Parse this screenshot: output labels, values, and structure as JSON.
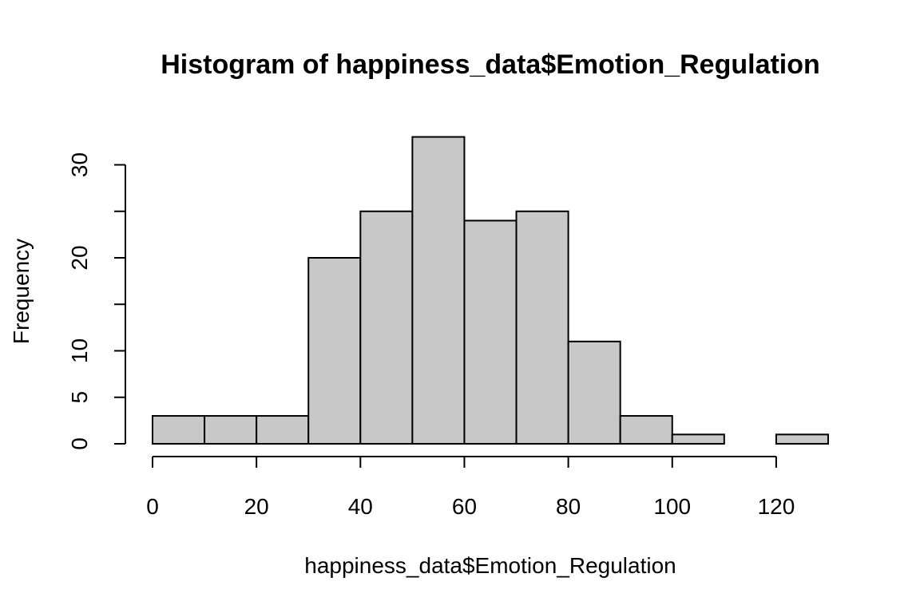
{
  "chart_data": {
    "type": "bar",
    "histogram": true,
    "title": "Histogram of happiness_data$Emotion_Regulation",
    "xlabel": "happiness_data$Emotion_Regulation",
    "ylabel": "Frequency",
    "bin_edges": [
      0,
      10,
      20,
      30,
      40,
      50,
      60,
      70,
      80,
      90,
      100,
      110,
      120,
      130
    ],
    "values": [
      3,
      3,
      3,
      20,
      25,
      33,
      24,
      25,
      11,
      3,
      1,
      0,
      1
    ],
    "xlim": [
      0,
      130
    ],
    "ylim": [
      0,
      33
    ],
    "x_ticks": [
      0,
      20,
      40,
      60,
      80,
      100,
      120
    ],
    "x_tick_labels": [
      "0",
      "20",
      "40",
      "60",
      "80",
      "100",
      "120"
    ],
    "y_ticks": [
      0,
      5,
      10,
      15,
      20,
      25,
      30
    ],
    "y_tick_labels": [
      "0",
      "5",
      "10",
      "",
      "20",
      "",
      "30"
    ],
    "bar_color": "#c8c8c8",
    "grid": false,
    "legend": "none"
  }
}
